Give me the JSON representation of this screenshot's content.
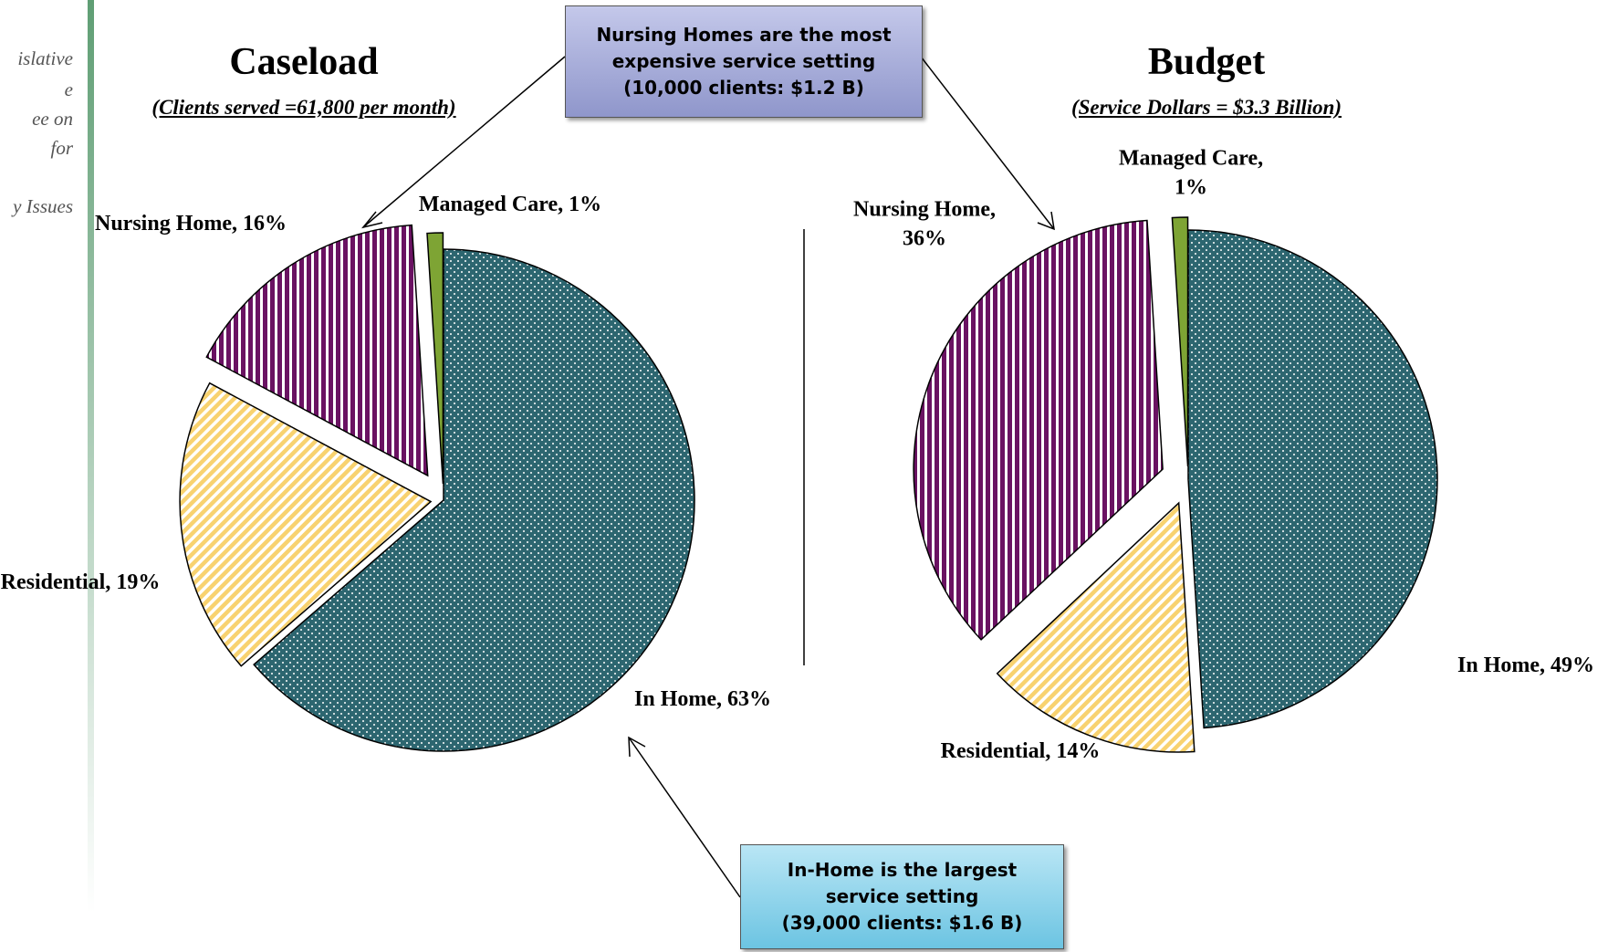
{
  "sidebar": {
    "lines": [
      "islative",
      "e",
      "ee on",
      "for",
      "y Issues"
    ]
  },
  "chart_data": [
    {
      "type": "pie",
      "title": "Caseload",
      "subtitle": "(Clients served =61,800 per month)",
      "values": [
        63,
        19,
        16,
        1
      ],
      "value_labels": [
        "In Home, 63%",
        "Residential, 19%",
        "Nursing Home, 16%",
        "Managed Care, 1%"
      ],
      "colors": [
        "#2d6670",
        "#f8d270",
        "#6a1262",
        "#7ea434"
      ]
    },
    {
      "type": "pie",
      "title": "Budget",
      "subtitle": "(Service Dollars = $3.3 Billion)",
      "values": [
        49,
        14,
        36,
        1
      ],
      "value_labels": [
        "In Home, 49%",
        "Residential, 14%",
        "Nursing Home, 36%",
        "Managed Care, 1%"
      ],
      "colors": [
        "#2d6670",
        "#f8d270",
        "#6a1262",
        "#7ea434"
      ]
    }
  ],
  "annotations": [
    {
      "lines": [
        "Nursing Homes are the most",
        "expensive service setting",
        "(10,000 clients: $1.2 B)"
      ]
    },
    {
      "lines": [
        "In-Home is the largest",
        "service setting",
        "(39,000 clients:  $1.6 B)"
      ]
    }
  ]
}
